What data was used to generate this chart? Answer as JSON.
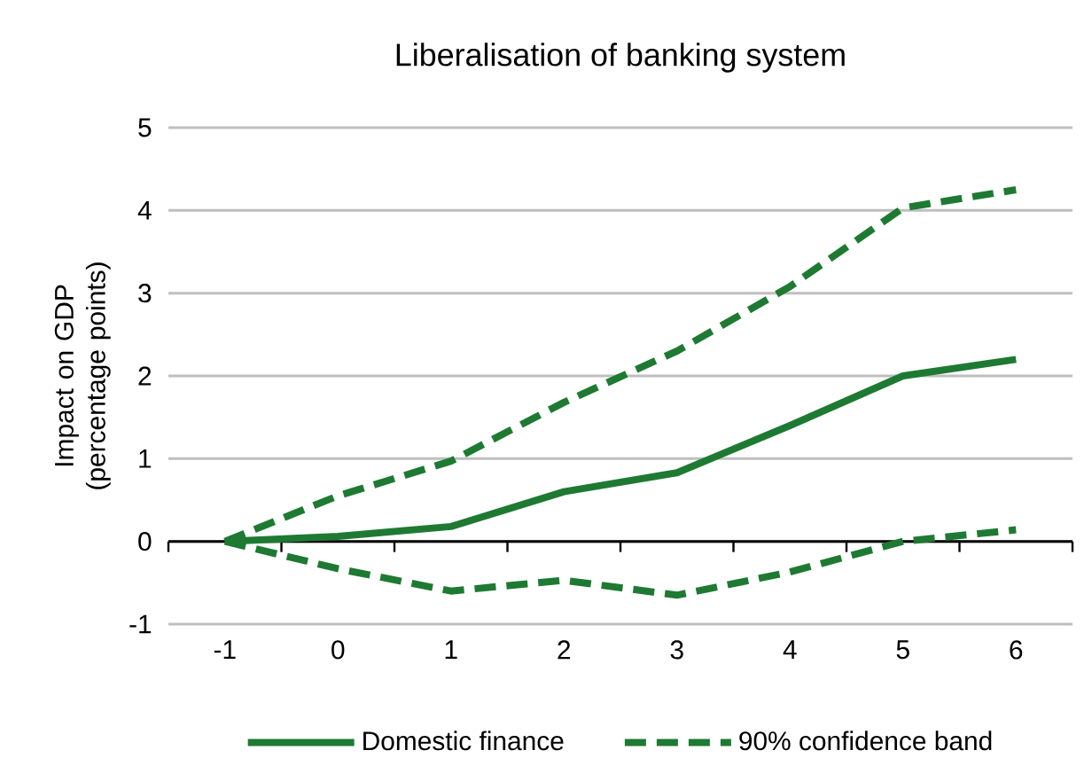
{
  "chart_data": {
    "type": "line",
    "title": "Liberalisation of banking system",
    "ylabel": "Impact on GDP (percentage points)",
    "categories": [
      "-1",
      "0",
      "1",
      "2",
      "3",
      "4",
      "5",
      "6"
    ],
    "series": [
      {
        "name": "Domestic finance",
        "color": "#1e7a32",
        "line_style": "solid",
        "values": [
          0,
          0.06,
          0.18,
          0.6,
          0.83,
          1.4,
          2.0,
          2.2
        ]
      },
      {
        "name": "90% confidence band",
        "color": "#1e7a32",
        "line_style": "dashed",
        "values": [
          0,
          0.55,
          0.97,
          1.68,
          2.3,
          3.08,
          4.03,
          4.25
        ]
      },
      {
        "color": "#1e7a32",
        "line_style": "dashed",
        "values": [
          0,
          -0.33,
          -0.6,
          -0.47,
          -0.65,
          -0.37,
          0,
          0.14
        ]
      }
    ],
    "ylim": [
      -1,
      5
    ],
    "yticks": [
      -1,
      0,
      1,
      2,
      3,
      4,
      5
    ],
    "grid": "y",
    "legend": "bottom"
  }
}
